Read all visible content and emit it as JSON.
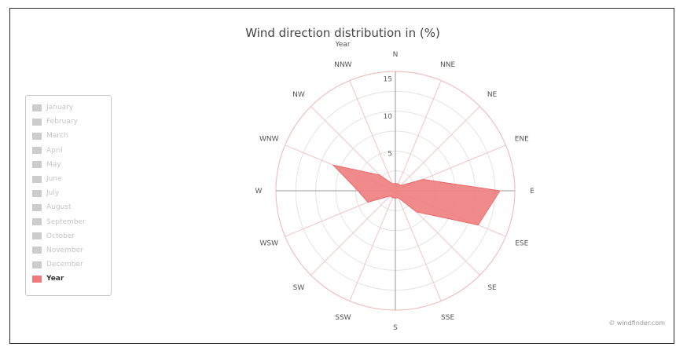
{
  "chart_data": {
    "type": "polar-area",
    "title": "Wind direction distribution in (%)",
    "subtitle": "Year",
    "directions": [
      "N",
      "NNE",
      "NE",
      "ENE",
      "E",
      "ESE",
      "SE",
      "SSE",
      "S",
      "SSW",
      "SW",
      "WSW",
      "W",
      "WNW",
      "NW",
      "NNW"
    ],
    "series": [
      {
        "name": "Year",
        "color": "#f08080",
        "values": [
          1,
          1,
          1,
          4,
          14,
          12,
          4,
          1,
          1,
          1,
          1,
          4,
          5,
          9,
          3,
          1
        ]
      }
    ],
    "radial_ticks": [
      "5",
      "10",
      "15"
    ],
    "rmax": 16
  },
  "legend": {
    "items": [
      "January",
      "February",
      "March",
      "April",
      "May",
      "June",
      "July",
      "August",
      "September",
      "October",
      "November",
      "December",
      "Year"
    ],
    "active": "Year"
  },
  "credit": "© windfinder.com"
}
